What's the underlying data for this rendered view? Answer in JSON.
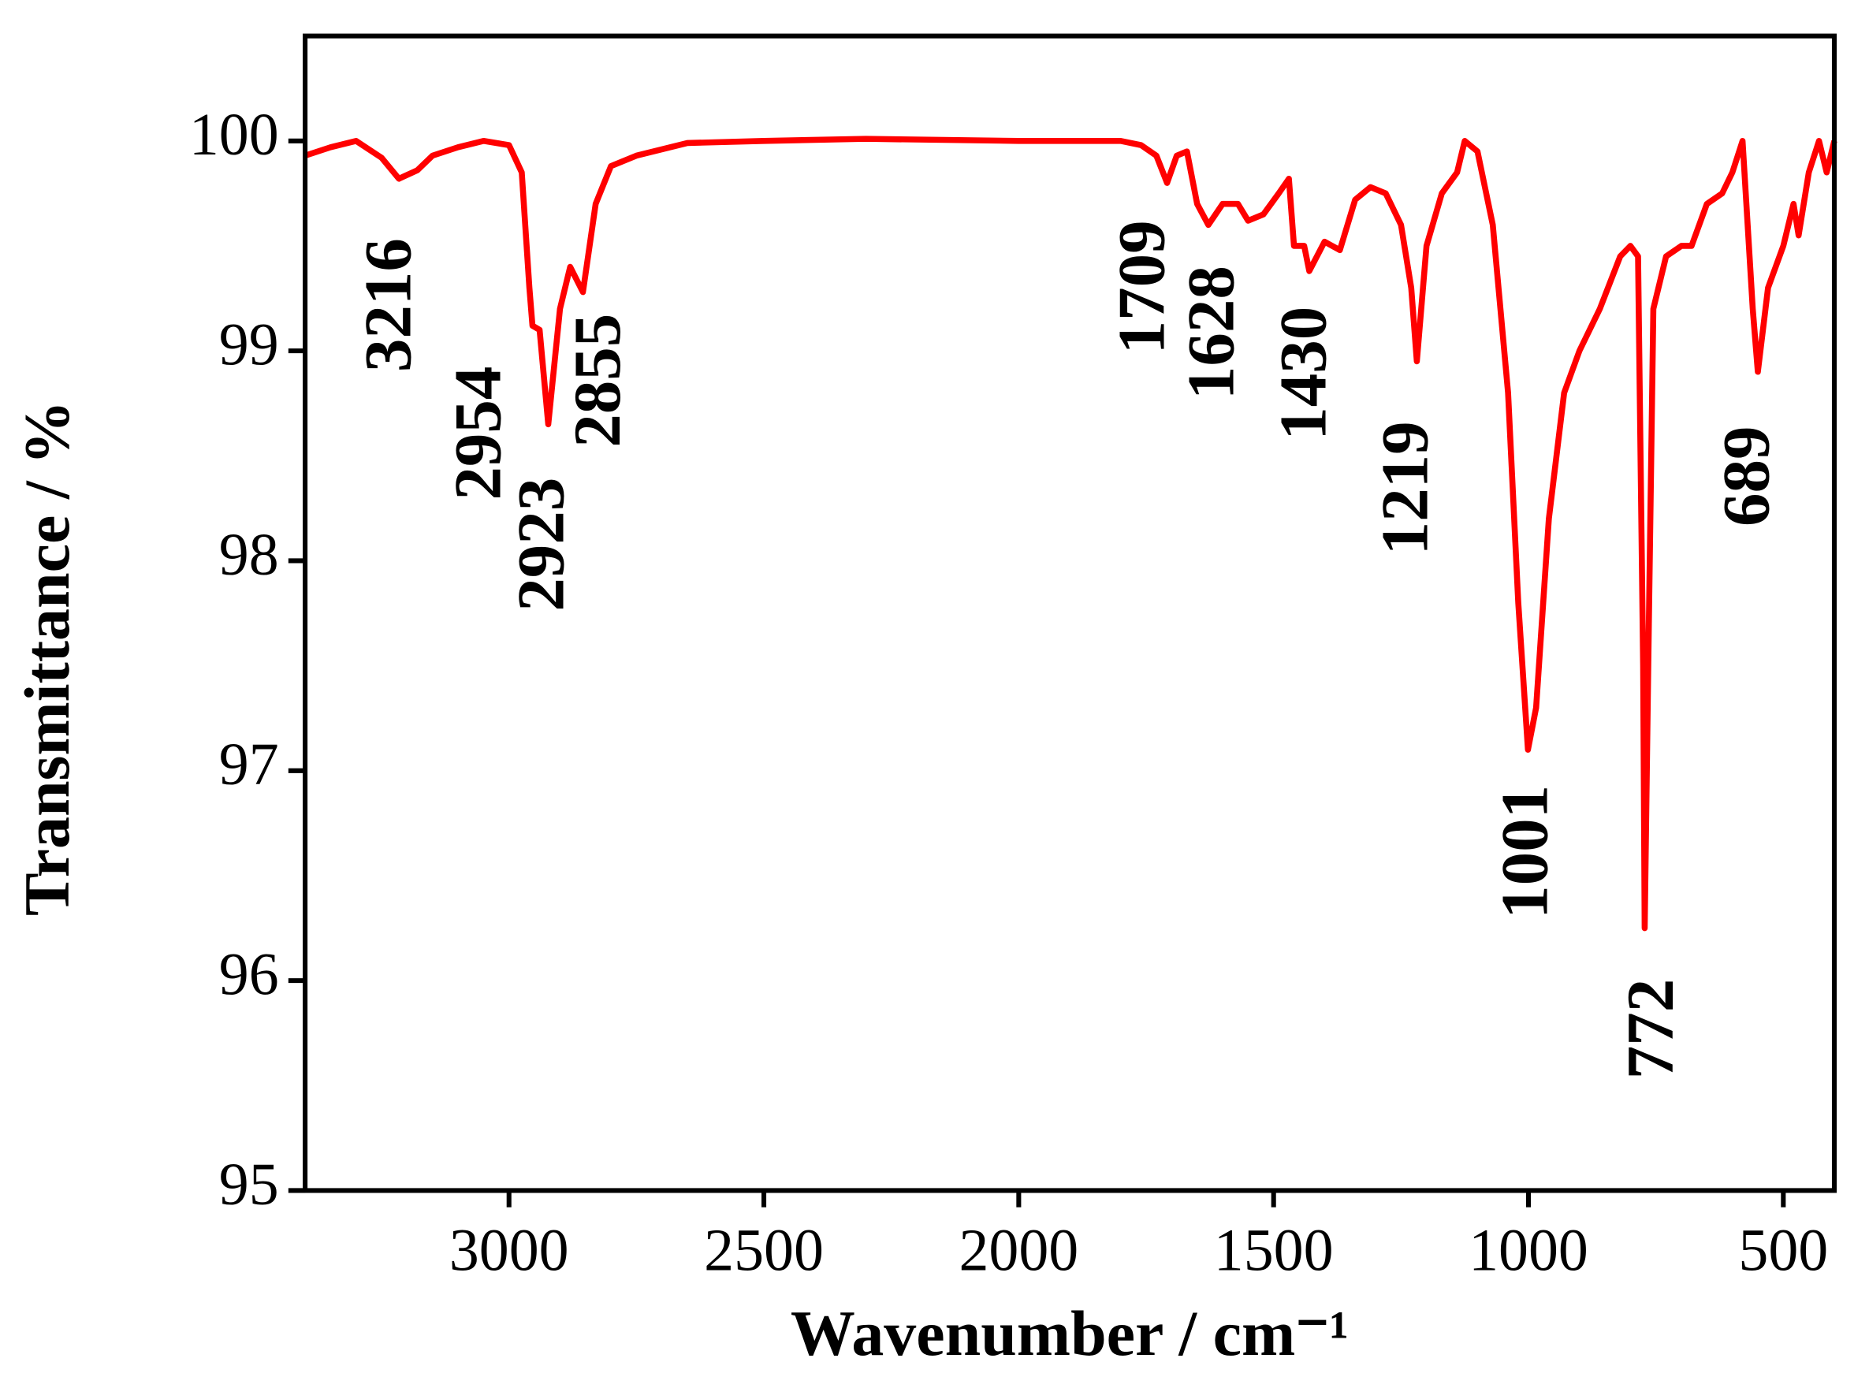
{
  "chart_data": {
    "type": "line",
    "x_label": "Wavenumber / cm⁻¹",
    "y_label": "Transmittance / %",
    "xlim": [
      3400,
      400
    ],
    "ylim": [
      95,
      100.5
    ],
    "xticks": [
      3000,
      2500,
      2000,
      1500,
      1000,
      500
    ],
    "yticks": [
      95,
      96,
      97,
      98,
      99,
      100
    ],
    "series": [
      {
        "color": "#ff0000",
        "x": [
          3400,
          3350,
          3300,
          3250,
          3216,
          3180,
          3150,
          3100,
          3050,
          3000,
          2975,
          2960,
          2954,
          2940,
          2923,
          2900,
          2880,
          2855,
          2830,
          2800,
          2750,
          2700,
          2650,
          2500,
          2300,
          2000,
          1800,
          1760,
          1730,
          1709,
          1690,
          1670,
          1650,
          1628,
          1600,
          1570,
          1550,
          1520,
          1490,
          1470,
          1460,
          1440,
          1430,
          1400,
          1370,
          1340,
          1310,
          1280,
          1250,
          1230,
          1219,
          1200,
          1170,
          1140,
          1125,
          1100,
          1070,
          1040,
          1020,
          1001,
          985,
          960,
          930,
          900,
          860,
          820,
          800,
          785,
          775,
          772,
          765,
          755,
          730,
          700,
          680,
          650,
          620,
          600,
          580,
          570,
          560,
          550,
          530,
          500,
          480,
          470,
          450,
          430,
          415,
          400
        ],
        "values": [
          99.93,
          99.97,
          100.0,
          99.92,
          99.82,
          99.86,
          99.93,
          99.97,
          100.0,
          99.98,
          99.85,
          99.3,
          99.12,
          99.1,
          98.65,
          99.2,
          99.4,
          99.28,
          99.7,
          99.88,
          99.93,
          99.96,
          99.99,
          100.0,
          100.01,
          100.0,
          100.0,
          99.98,
          99.93,
          99.8,
          99.93,
          99.95,
          99.7,
          99.6,
          99.7,
          99.7,
          99.62,
          99.65,
          99.75,
          99.82,
          99.5,
          99.5,
          99.38,
          99.52,
          99.48,
          99.72,
          99.78,
          99.75,
          99.6,
          99.3,
          98.95,
          99.5,
          99.75,
          99.85,
          100.0,
          99.95,
          99.6,
          98.8,
          97.8,
          97.1,
          97.3,
          98.2,
          98.8,
          99.0,
          99.2,
          99.45,
          99.5,
          99.45,
          97.5,
          96.25,
          97.5,
          99.2,
          99.45,
          99.5,
          99.5,
          99.7,
          99.75,
          99.85,
          100.0,
          99.6,
          99.2,
          98.9,
          99.3,
          99.5,
          99.7,
          99.55,
          99.85,
          100.0,
          99.85,
          100.0
        ]
      }
    ],
    "annotations": [
      "3216",
      "2954",
      "2923",
      "2855",
      "1709",
      "1628",
      "1430",
      "1219",
      "1001",
      "772",
      "689"
    ]
  }
}
